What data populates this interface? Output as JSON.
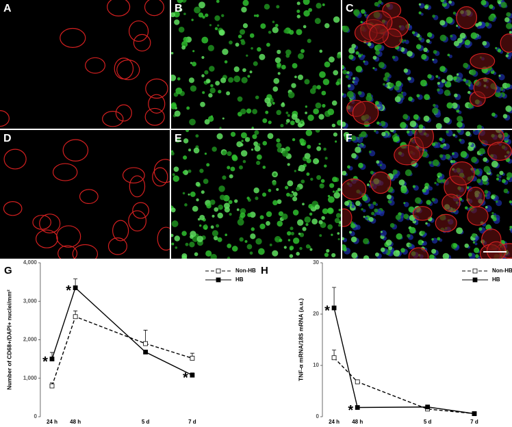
{
  "panels": [
    "A",
    "B",
    "C",
    "D",
    "E",
    "F"
  ],
  "chart_data": [
    {
      "type": "line",
      "label": "G",
      "y_label": "Number of CD68+/DAPI+ nuclei/mm²",
      "x": [
        24,
        48,
        120,
        168
      ],
      "xlim": [
        12,
        180
      ],
      "xticks": [
        {
          "value": 24,
          "label": "24 h"
        },
        {
          "value": 48,
          "label": "48 h"
        },
        {
          "value": 120,
          "label": "5 d"
        },
        {
          "value": 168,
          "label": "7 d"
        }
      ],
      "ylim": [
        0,
        4000
      ],
      "yticks": [
        0,
        {
          "value": 1000,
          "label": "1,000"
        },
        {
          "value": 2000,
          "label": "2,000"
        },
        {
          "value": 3000,
          "label": "3,000"
        },
        {
          "value": 4000,
          "label": "4,000"
        }
      ],
      "series": [
        {
          "name": "Non-HB",
          "color": "#000000",
          "dashed": true,
          "marker": "open-square",
          "values": [
            800,
            2600,
            1900,
            1520
          ],
          "errors": [
            80,
            150,
            350,
            130
          ]
        },
        {
          "name": "HB",
          "color": "#000000",
          "dashed": false,
          "marker": "filled-square",
          "values": [
            1500,
            3350,
            1680,
            1080
          ],
          "errors": [
            170,
            230,
            0,
            60
          ],
          "significance": [
            "*",
            "*",
            null,
            "*"
          ]
        }
      ]
    },
    {
      "type": "line",
      "label": "H",
      "y_label": "TNF-α mRNA/18S mRNA (a.u.)",
      "x": [
        24,
        48,
        120,
        168
      ],
      "xlim": [
        12,
        180
      ],
      "xticks": [
        {
          "value": 24,
          "label": "24 h"
        },
        {
          "value": 48,
          "label": "48 h"
        },
        {
          "value": 120,
          "label": "5 d"
        },
        {
          "value": 168,
          "label": "7 d"
        }
      ],
      "ylim": [
        0,
        30
      ],
      "yticks": [
        0,
        10,
        20,
        30
      ],
      "series": [
        {
          "name": "Non-HB",
          "color": "#000000",
          "dashed": true,
          "marker": "open-square",
          "values": [
            11.5,
            6.8,
            1.5,
            0.6
          ],
          "errors": [
            1.5,
            0.4,
            0,
            0
          ]
        },
        {
          "name": "HB",
          "color": "#000000",
          "dashed": false,
          "marker": "filled-square",
          "values": [
            21.2,
            1.8,
            1.9,
            0.6
          ],
          "errors": [
            4,
            0,
            0,
            0
          ],
          "significance": [
            "*",
            "*",
            null,
            null
          ]
        }
      ]
    }
  ]
}
